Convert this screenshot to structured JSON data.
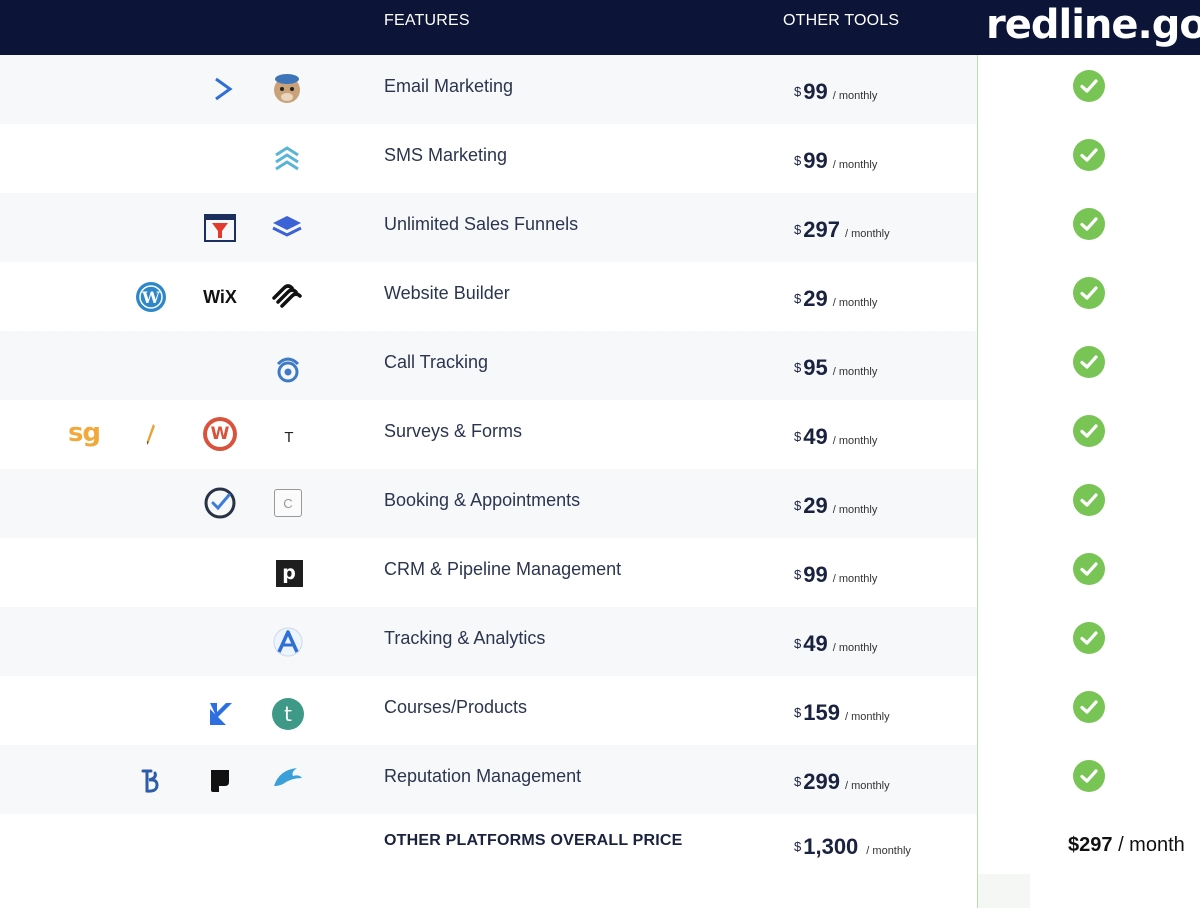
{
  "header": {
    "features_label": "FEATURES",
    "other_tools_label": "OTHER TOOLS",
    "brand": "redline.go"
  },
  "rows": [
    {
      "feature": "Email Marketing",
      "currency": "$",
      "price": "99",
      "period": "/ monthly",
      "icons": [
        "activecampaign-icon",
        "mailchimp-icon"
      ]
    },
    {
      "feature": "SMS Marketing",
      "currency": "$",
      "price": "99",
      "period": "/ monthly",
      "icons": [
        "chevrons-up-icon"
      ]
    },
    {
      "feature": "Unlimited Sales Funnels",
      "currency": "$",
      "price": "297",
      "period": "/ monthly",
      "icons": [
        "clickfunnels-icon",
        "layers-icon"
      ]
    },
    {
      "feature": "Website Builder",
      "currency": "$",
      "price": "29",
      "period": "/ monthly",
      "icons": [
        "wordpress-icon",
        "wix-logo",
        "squarespace-icon"
      ]
    },
    {
      "feature": "Call Tracking",
      "currency": "$",
      "price": "95",
      "period": "/ monthly",
      "icons": [
        "call-tracking-icon"
      ]
    },
    {
      "feature": "Surveys & Forms",
      "currency": "$",
      "price": "49",
      "period": "/ monthly",
      "icons": [
        "surveygizmo-icon",
        "pencil-icon",
        "wufoo-icon",
        "typeform-icon"
      ]
    },
    {
      "feature": "Booking & Appointments",
      "currency": "$",
      "price": "29",
      "period": "/ monthly",
      "icons": [
        "acuity-check-icon",
        "calendly-icon"
      ]
    },
    {
      "feature": "CRM & Pipeline Management",
      "currency": "$",
      "price": "99",
      "period": "/ monthly",
      "icons": [
        "pipedrive-icon"
      ]
    },
    {
      "feature": "Tracking & Analytics",
      "currency": "$",
      "price": "49",
      "period": "/ monthly",
      "icons": [
        "analytics-icon"
      ]
    },
    {
      "feature": "Courses/Products",
      "currency": "$",
      "price": "159",
      "period": "/ monthly",
      "icons": [
        "kajabi-icon",
        "teachable-icon"
      ]
    },
    {
      "feature": "Reputation Management",
      "currency": "$",
      "price": "299",
      "period": "/ monthly",
      "icons": [
        "birdeye-icon",
        "podium-icon",
        "reputation-wing-icon"
      ]
    }
  ],
  "icon_text": {
    "wix": "WiX",
    "sg": "sg",
    "typeform": "T",
    "calendly": "C",
    "pipedrive": "p",
    "teachable": "t",
    "wufoo": "W"
  },
  "total": {
    "label": "OTHER PLATFORMS OVERALL PRICE",
    "currency": "$",
    "price": "1,300",
    "period": "/ monthly",
    "brand_price": "$297",
    "brand_period": "/ month"
  },
  "colors": {
    "header_bg": "#0c1537",
    "check_green": "#78c556",
    "row_shade": "#f7f8f9",
    "divider_green": "#b9dcb0"
  }
}
